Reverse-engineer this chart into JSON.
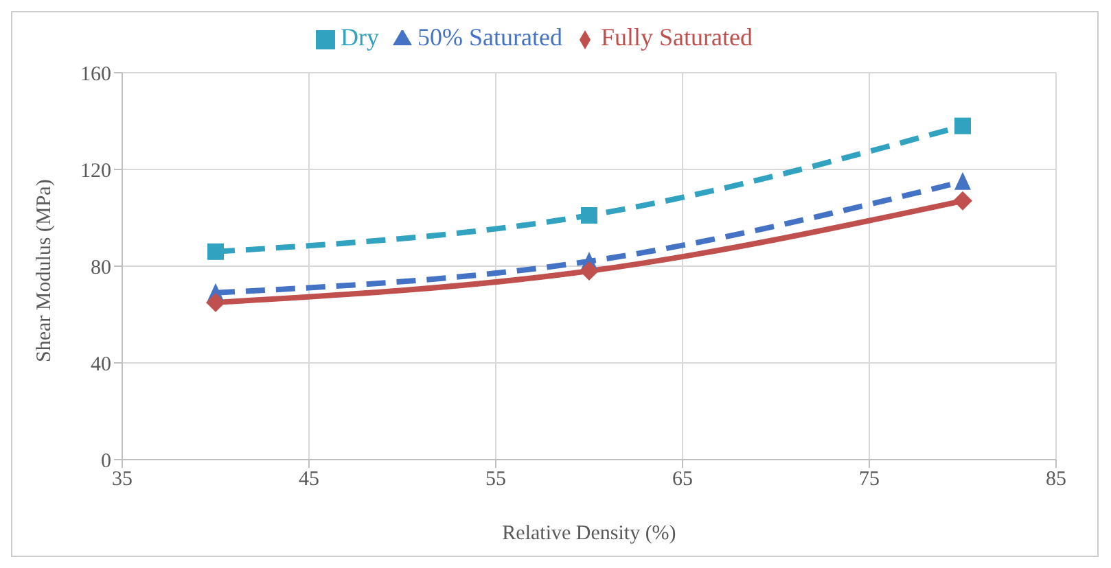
{
  "chart_data": {
    "type": "line",
    "xlabel": "Relative Density (%)",
    "ylabel": "Shear Modulus  (MPa)",
    "x": [
      40,
      60,
      80
    ],
    "series": [
      {
        "name": "Dry",
        "color": "#31a2bf",
        "values": [
          86,
          101,
          138
        ],
        "marker": "square",
        "line_style": "dashed"
      },
      {
        "name": "50% Saturated",
        "color": "#4472c4",
        "values": [
          69,
          82,
          115
        ],
        "marker": "triangle",
        "line_style": "dashed"
      },
      {
        "name": "Fully Saturated",
        "color": "#c0504d",
        "values": [
          65,
          78,
          107
        ],
        "marker": "diamond",
        "line_style": "solid"
      }
    ],
    "xlim": [
      35,
      85
    ],
    "xticks": [
      35,
      45,
      55,
      65,
      75,
      85
    ],
    "ylim": [
      0,
      160
    ],
    "yticks": [
      0,
      40,
      80,
      120,
      160
    ],
    "grid": true,
    "legend": "top"
  }
}
